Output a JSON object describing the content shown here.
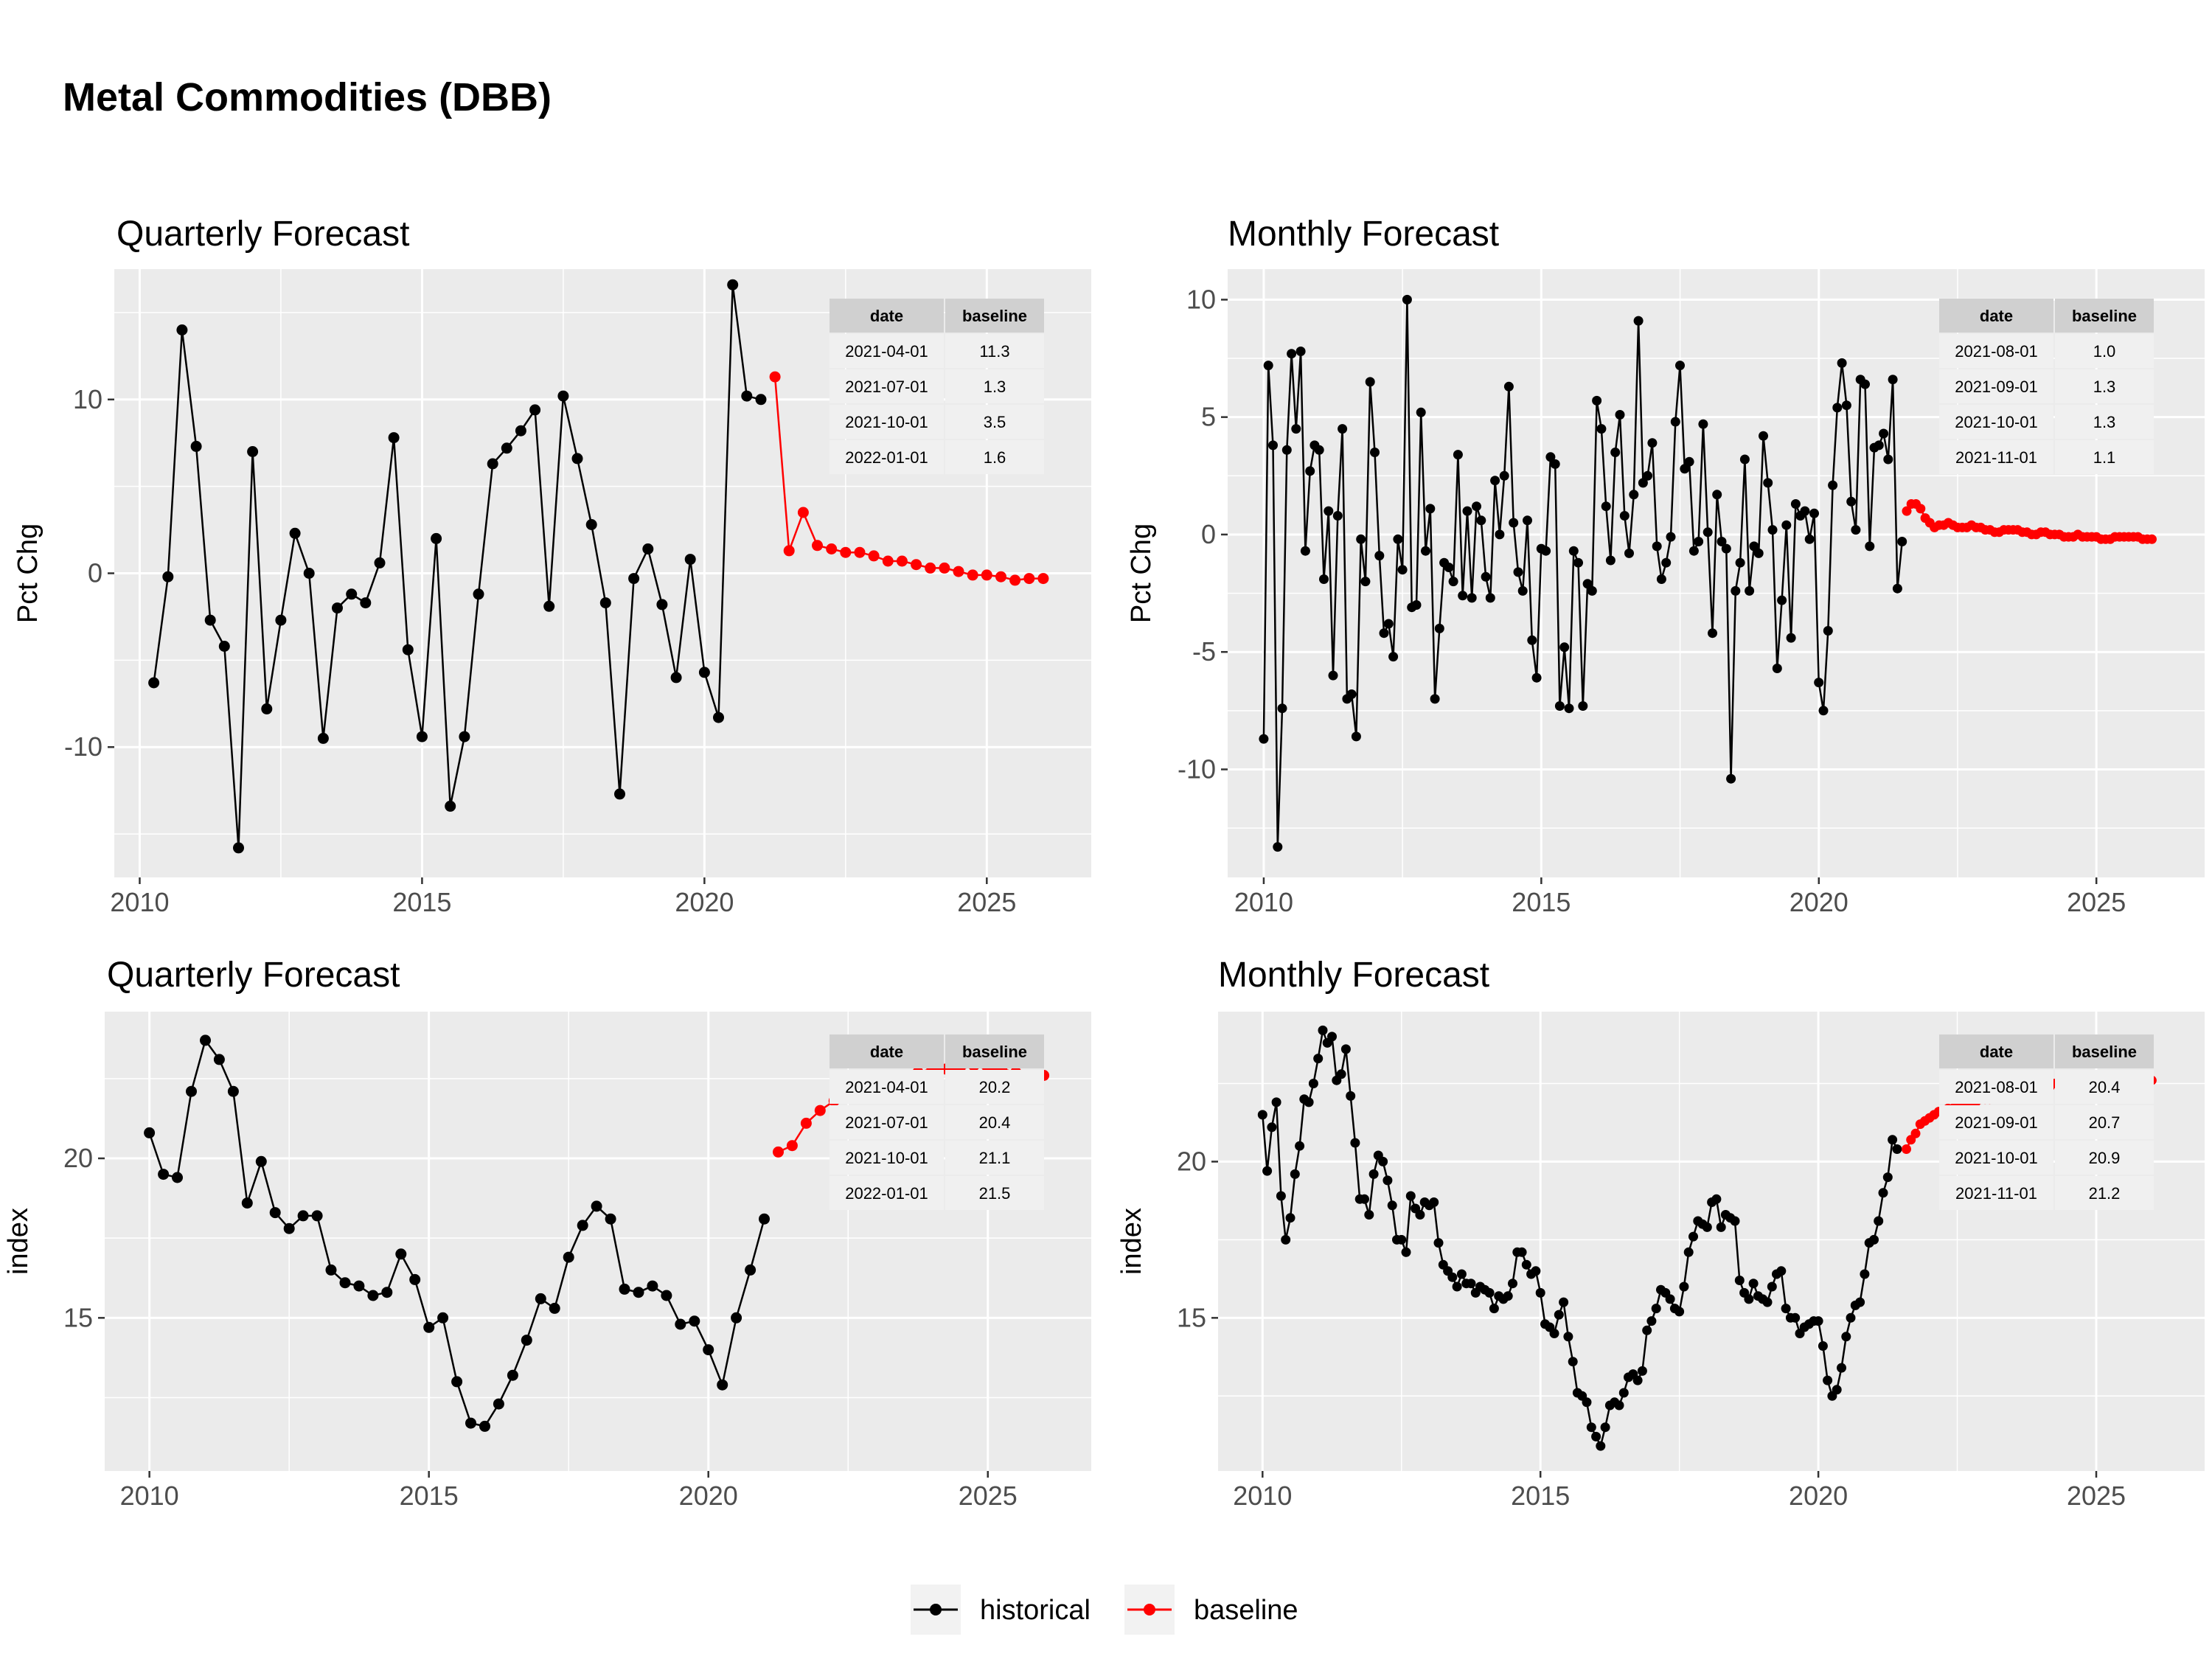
{
  "page_title": "Metal Commodities (DBB)",
  "colors": {
    "historical": "#000000",
    "baseline": "#FF0000",
    "panel_bg": "#EBEBEB",
    "grid": "#FFFFFF",
    "table_header": "#D0D0D0",
    "table_row": "#F0F0F0"
  },
  "legend": {
    "items": [
      {
        "label": "historical",
        "color": "#000000"
      },
      {
        "label": "baseline",
        "color": "#FF0000"
      }
    ]
  },
  "chart_data": [
    {
      "type": "line",
      "title": "Quarterly Forecast",
      "xlabel": "",
      "ylabel": "Pct Chg",
      "xlim": [
        2009.55,
        2026.85
      ],
      "ylim": [
        -17.5,
        17.5
      ],
      "xticks": [
        2010,
        2015,
        2020,
        2025
      ],
      "yticks": [
        -10,
        0,
        10
      ],
      "ytick_labels": [
        "-10",
        "0",
        "10"
      ],
      "series": [
        {
          "name": "historical",
          "x_start": 2010.25,
          "x_step": 0.25,
          "values": [
            -6.3,
            -0.2,
            14.0,
            7.3,
            -2.7,
            -4.2,
            -15.8,
            7.0,
            -7.8,
            -2.7,
            2.3,
            0.0,
            -9.5,
            -2.0,
            -1.2,
            -1.7,
            0.6,
            7.8,
            -4.4,
            -9.4,
            2.0,
            -13.4,
            -9.4,
            -1.2,
            6.3,
            7.2,
            8.2,
            9.4,
            -1.9,
            10.2,
            6.6,
            2.8,
            -1.7,
            -12.7,
            -0.3,
            1.4,
            -1.8,
            -6.0,
            0.8,
            -5.7,
            -8.3,
            16.6,
            10.2,
            10.0
          ]
        },
        {
          "name": "baseline",
          "x_start": 2021.25,
          "x_step": 0.25,
          "values": [
            11.3,
            1.3,
            3.5,
            1.6,
            1.4,
            1.2,
            1.2,
            1.0,
            0.7,
            0.7,
            0.5,
            0.3,
            0.3,
            0.1,
            -0.1,
            -0.1,
            -0.2,
            -0.4,
            -0.3,
            -0.3
          ]
        }
      ],
      "table": {
        "columns": [
          "date",
          "baseline"
        ],
        "rows": [
          [
            "2021-04-01",
            "11.3"
          ],
          [
            "2021-07-01",
            "1.3"
          ],
          [
            "2021-10-01",
            "3.5"
          ],
          [
            "2022-01-01",
            "1.6"
          ]
        ]
      }
    },
    {
      "type": "line",
      "title": "Monthly Forecast",
      "xlabel": "",
      "ylabel": "Pct Chg",
      "xlim": [
        2009.35,
        2026.95
      ],
      "ylim": [
        -14.6,
        11.3
      ],
      "xticks": [
        2010,
        2015,
        2020,
        2025
      ],
      "yticks": [
        -10,
        -5,
        0,
        5,
        10
      ],
      "ytick_labels": [
        "-10",
        "-5",
        "0",
        "5",
        "10"
      ],
      "series": [
        {
          "name": "historical",
          "x_start": 2010.0,
          "x_step": 0.08333,
          "values": [
            -8.7,
            7.2,
            3.8,
            -13.3,
            -7.4,
            3.6,
            7.7,
            4.5,
            7.8,
            -0.7,
            2.7,
            3.8,
            3.6,
            -1.9,
            1.0,
            -6.0,
            0.8,
            4.5,
            -7.0,
            -6.8,
            -8.6,
            -0.2,
            -2.0,
            6.5,
            3.5,
            -0.9,
            -4.2,
            -3.8,
            -5.2,
            -0.2,
            -1.5,
            10.0,
            -3.1,
            -3.0,
            5.2,
            -0.7,
            1.1,
            -7.0,
            -4.0,
            -1.2,
            -1.4,
            -2.0,
            3.4,
            -2.6,
            1.0,
            -2.7,
            1.2,
            0.6,
            -1.8,
            -2.7,
            2.3,
            0.0,
            2.5,
            6.3,
            0.5,
            -1.6,
            -2.4,
            0.6,
            -4.5,
            -6.1,
            -0.6,
            -0.7,
            3.3,
            3.0,
            -7.3,
            -4.8,
            -7.4,
            -0.7,
            -1.2,
            -7.3,
            -2.1,
            -2.4,
            5.7,
            4.5,
            1.2,
            -1.1,
            3.5,
            5.1,
            0.8,
            -0.8,
            1.7,
            9.1,
            2.2,
            2.5,
            3.9,
            -0.5,
            -1.9,
            -1.2,
            -0.1,
            4.8,
            7.2,
            2.8,
            3.1,
            -0.7,
            -0.3,
            4.7,
            0.1,
            -4.2,
            1.7,
            -0.3,
            -0.6,
            -10.4,
            -2.4,
            -1.2,
            3.2,
            -2.4,
            -0.5,
            -0.8,
            4.2,
            2.2,
            0.2,
            -5.7,
            -2.8,
            0.4,
            -4.4,
            1.3,
            0.8,
            1.0,
            -0.2,
            0.9,
            -6.3,
            -7.5,
            -4.1,
            2.1,
            5.4,
            7.3,
            5.5,
            1.4,
            0.2,
            6.6,
            6.4,
            -0.5,
            3.7,
            3.8,
            4.3,
            3.2,
            6.6,
            -2.3,
            -0.3
          ]
        },
        {
          "name": "baseline",
          "x_start": 2021.5833,
          "x_step": 0.08333,
          "values": [
            1.0,
            1.3,
            1.3,
            1.1,
            0.7,
            0.5,
            0.3,
            0.4,
            0.4,
            0.5,
            0.4,
            0.3,
            0.3,
            0.3,
            0.4,
            0.3,
            0.3,
            0.2,
            0.2,
            0.1,
            0.1,
            0.2,
            0.2,
            0.2,
            0.2,
            0.1,
            0.1,
            0.0,
            0.0,
            0.1,
            0.1,
            0.0,
            0.0,
            0.0,
            -0.1,
            -0.1,
            -0.1,
            0.0,
            -0.1,
            -0.1,
            -0.1,
            -0.1,
            -0.2,
            -0.2,
            -0.2,
            -0.1,
            -0.1,
            -0.1,
            -0.1,
            -0.1,
            -0.1,
            -0.2,
            -0.2,
            -0.2
          ]
        }
      ],
      "table": {
        "columns": [
          "date",
          "baseline"
        ],
        "rows": [
          [
            "2021-08-01",
            "1.0"
          ],
          [
            "2021-09-01",
            "1.3"
          ],
          [
            "2021-10-01",
            "1.3"
          ],
          [
            "2021-11-01",
            "1.1"
          ]
        ]
      }
    },
    {
      "type": "line",
      "title": "Quarterly Forecast",
      "xlabel": "",
      "ylabel": "index",
      "xlim": [
        2009.2,
        2026.85
      ],
      "ylim": [
        10.2,
        24.6
      ],
      "xticks": [
        2010,
        2015,
        2020,
        2025
      ],
      "yticks": [
        15,
        20
      ],
      "ytick_labels": [
        "15",
        "20"
      ],
      "series": [
        {
          "name": "historical",
          "x_start": 2010.0,
          "x_step": 0.25,
          "values": [
            20.8,
            19.5,
            19.4,
            22.1,
            23.7,
            23.1,
            22.1,
            18.6,
            19.9,
            18.3,
            17.8,
            18.2,
            18.2,
            16.5,
            16.1,
            16.0,
            15.7,
            15.8,
            17.0,
            16.2,
            14.7,
            15.0,
            13.0,
            11.7,
            11.6,
            12.3,
            13.2,
            14.3,
            15.6,
            15.3,
            16.9,
            17.9,
            18.5,
            18.1,
            15.9,
            15.8,
            16.0,
            15.7,
            14.8,
            14.9,
            14.0,
            12.9,
            15.0,
            16.5,
            18.1
          ]
        },
        {
          "name": "baseline",
          "x_start": 2021.25,
          "x_step": 0.25,
          "values": [
            20.2,
            20.4,
            21.1,
            21.5,
            21.8,
            22.0,
            22.2,
            22.4,
            22.5,
            22.6,
            22.7,
            22.8,
            22.8,
            22.8,
            22.9,
            22.8,
            22.8,
            22.7,
            22.6,
            22.6
          ]
        }
      ],
      "table": {
        "columns": [
          "date",
          "baseline"
        ],
        "rows": [
          [
            "2021-04-01",
            "20.2"
          ],
          [
            "2021-07-01",
            "20.4"
          ],
          [
            "2021-10-01",
            "21.1"
          ],
          [
            "2022-01-01",
            "21.5"
          ]
        ]
      }
    },
    {
      "type": "line",
      "title": "Monthly Forecast",
      "xlabel": "",
      "ylabel": "index",
      "xlim": [
        2009.2,
        2026.95
      ],
      "ylim": [
        10.1,
        24.8
      ],
      "xticks": [
        2010,
        2015,
        2020,
        2025
      ],
      "yticks": [
        15,
        20
      ],
      "ytick_labels": [
        "15",
        "20"
      ],
      "series": [
        {
          "name": "historical",
          "x_start": 2010.0,
          "x_step": 0.08333,
          "values": [
            21.5,
            19.7,
            21.1,
            21.9,
            18.9,
            17.5,
            18.2,
            19.6,
            20.5,
            22.0,
            21.9,
            22.5,
            23.3,
            24.2,
            23.8,
            24.0,
            22.6,
            22.8,
            23.6,
            22.1,
            20.6,
            18.8,
            18.8,
            18.3,
            19.6,
            20.2,
            20.0,
            19.4,
            18.6,
            17.5,
            17.5,
            17.1,
            18.9,
            18.5,
            18.3,
            18.7,
            18.6,
            18.7,
            17.4,
            16.7,
            16.5,
            16.3,
            16.0,
            16.4,
            16.1,
            16.1,
            15.8,
            16.0,
            15.9,
            15.8,
            15.3,
            15.7,
            15.6,
            15.7,
            16.1,
            17.1,
            17.1,
            16.7,
            16.4,
            16.5,
            15.8,
            14.8,
            14.7,
            14.5,
            15.1,
            15.5,
            14.4,
            13.6,
            12.6,
            12.5,
            12.3,
            11.5,
            11.2,
            10.9,
            11.5,
            12.2,
            12.3,
            12.2,
            12.6,
            13.1,
            13.2,
            13.0,
            13.3,
            14.6,
            14.9,
            15.3,
            15.9,
            15.8,
            15.6,
            15.3,
            15.2,
            16.0,
            17.1,
            17.6,
            18.1,
            18.0,
            17.9,
            18.7,
            18.8,
            17.9,
            18.3,
            18.2,
            18.1,
            16.2,
            15.8,
            15.6,
            16.1,
            15.7,
            15.6,
            15.5,
            16.0,
            16.4,
            16.5,
            15.3,
            15.0,
            15.0,
            14.5,
            14.7,
            14.8,
            14.9,
            14.9,
            14.1,
            13.0,
            12.5,
            12.7,
            13.4,
            14.4,
            15.0,
            15.4,
            15.5,
            16.4,
            17.4,
            17.5,
            18.1,
            19.0,
            19.5,
            20.7,
            20.4
          ]
        },
        {
          "name": "baseline",
          "x_start": 2021.5833,
          "x_step": 0.08333,
          "values": [
            20.4,
            20.7,
            20.9,
            21.2,
            21.3,
            21.4,
            21.5,
            21.6,
            21.6,
            21.7,
            21.7,
            21.8,
            21.8,
            21.9,
            21.9,
            21.9,
            22.0,
            22.0,
            22.0,
            22.1,
            22.1,
            22.1,
            22.2,
            22.2,
            22.2,
            22.3,
            22.3,
            22.3,
            22.4,
            22.4,
            22.4,
            22.4,
            22.5,
            22.5,
            22.5,
            22.5,
            22.5,
            22.6,
            22.6,
            22.6,
            22.6,
            22.6,
            22.6,
            22.6,
            22.6,
            22.6,
            22.6,
            22.6,
            22.6,
            22.6,
            22.6,
            22.6,
            22.6,
            22.6
          ]
        }
      ],
      "table": {
        "columns": [
          "date",
          "baseline"
        ],
        "rows": [
          [
            "2021-08-01",
            "20.4"
          ],
          [
            "2021-09-01",
            "20.7"
          ],
          [
            "2021-10-01",
            "20.9"
          ],
          [
            "2021-11-01",
            "21.2"
          ]
        ]
      }
    }
  ]
}
